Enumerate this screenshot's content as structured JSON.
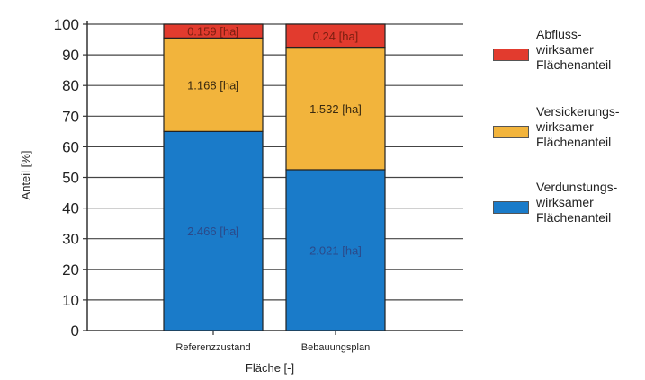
{
  "chart_data": {
    "type": "bar",
    "stacked": true,
    "categories": [
      "Referenzzustand",
      "Bebauungsplan"
    ],
    "series": [
      {
        "name": "Verdunstungswirksamer Flächenanteil",
        "values": [
          65,
          52.5
        ],
        "labels": [
          "2.466 [ha]",
          "2.021 [ha]"
        ],
        "color": "#1a7bc9"
      },
      {
        "name": "Versickerungswirksamer Flächenanteil",
        "values": [
          30.5,
          40
        ],
        "labels": [
          "1.168 [ha]",
          "1.532 [ha]"
        ],
        "color": "#f2b43c"
      },
      {
        "name": "Abflusswirksamer Flächenanteil",
        "values": [
          4.5,
          7.5
        ],
        "labels": [
          "0.159 [ha]",
          "0.24 [ha]"
        ],
        "color": "#e23b2e"
      }
    ],
    "xlabel": "Fläche [-]",
    "ylabel": "Anteil [%]",
    "ylim": [
      0,
      100
    ],
    "yticks": [
      "0",
      "10",
      "20",
      "30",
      "40",
      "50",
      "60",
      "70",
      "80",
      "90",
      "100"
    ],
    "grid": true,
    "legend_position": "right"
  },
  "legend": [
    {
      "lines": [
        "Abfluss-",
        "wirksamer",
        "Flächenanteil"
      ],
      "color": "#e23b2e"
    },
    {
      "lines": [
        "Versickerungs-",
        "wirksamer",
        "Flächenanteil"
      ],
      "color": "#f2b43c"
    },
    {
      "lines": [
        "Verdunstungs-",
        "wirksamer",
        "Flächenanteil"
      ],
      "color": "#1a7bc9"
    }
  ]
}
